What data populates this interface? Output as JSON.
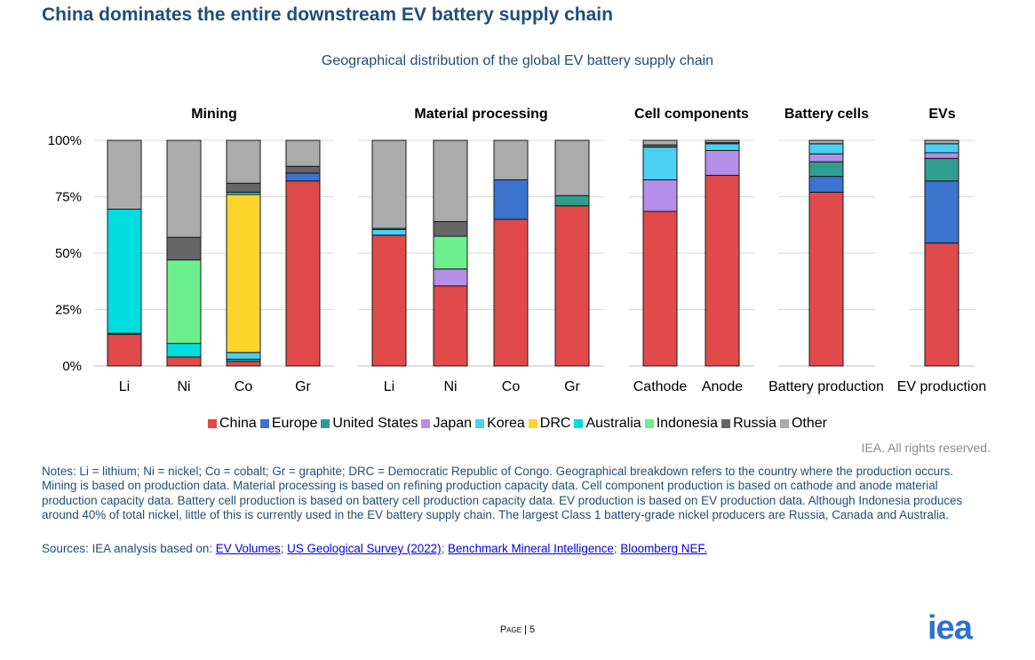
{
  "title": "China dominates the entire downstream EV battery supply chain",
  "subtitle": "Geographical distribution of the global EV battery supply chain",
  "rights": "IEA. All rights reserved.",
  "notes": "Notes: Li = lithium; Ni = nickel; Co = cobalt; Gr = graphite; DRC = Democratic Republic of Congo. Geographical breakdown refers to the country where the production occurs. Mining is based on production data. Material processing is based on refining production capacity data. Cell component production is based on cathode and anode material production capacity data. Battery cell production is based on battery cell production capacity data. EV production is based on EV production data. Although Indonesia produces around 40% of total nickel, little of this is currently used in the EV battery supply chain. The largest Class 1 battery-grade nickel producers are Russia, Canada and Australia.",
  "sources": {
    "prefix": "Sources: IEA analysis based on: ",
    "links": [
      "EV Volumes",
      "US Geological Survey (2022)",
      "Benchmark Mineral Intelligence",
      "Bloomberg NEF."
    ],
    "separators": [
      "; ",
      "; ",
      "; "
    ]
  },
  "page": {
    "label": "Page",
    "number": "5"
  },
  "logo": "iea",
  "chart_data": {
    "type": "bar",
    "stacked": true,
    "ylim": [
      0,
      100
    ],
    "yticks": [
      "0%",
      "25%",
      "50%",
      "75%",
      "100%"
    ],
    "legend_position": "bottom",
    "grid": true,
    "series": [
      {
        "name": "China",
        "color": "#e04a4a"
      },
      {
        "name": "Europe",
        "color": "#3b73cf"
      },
      {
        "name": "United States",
        "color": "#2e9e8f"
      },
      {
        "name": "Japan",
        "color": "#b48ee8"
      },
      {
        "name": "Korea",
        "color": "#4ad0f2"
      },
      {
        "name": "DRC",
        "color": "#fdd42b"
      },
      {
        "name": "Australia",
        "color": "#00dde0"
      },
      {
        "name": "Indonesia",
        "color": "#6bef8d"
      },
      {
        "name": "Russia",
        "color": "#666666"
      },
      {
        "name": "Other",
        "color": "#ababab"
      }
    ],
    "groups": [
      {
        "label": "Mining",
        "bars": [
          {
            "label": "Li",
            "values": {
              "China": 14,
              "Europe": 0.5,
              "Australia": 55,
              "Other": 30.5
            }
          },
          {
            "label": "Ni",
            "values": {
              "China": 4,
              "Australia": 6,
              "Indonesia": 37,
              "Russia": 10,
              "Other": 43
            }
          },
          {
            "label": "Co",
            "values": {
              "China": 2,
              "United States": 1,
              "Korea": 3,
              "DRC": 70,
              "Australia": 1,
              "Russia": 4,
              "Other": 19
            }
          },
          {
            "label": "Gr",
            "values": {
              "China": 82,
              "Europe": 3.5,
              "Russia": 3,
              "Other": 11.5
            }
          }
        ]
      },
      {
        "label": "Material processing",
        "bars": [
          {
            "label": "Li",
            "values": {
              "China": 58,
              "Korea": 2.5,
              "Australia": 0.5,
              "Other": 39
            }
          },
          {
            "label": "Ni",
            "values": {
              "China": 35.5,
              "Japan": 7.5,
              "Indonesia": 14.5,
              "Russia": 6.5,
              "Other": 36
            }
          },
          {
            "label": "Co",
            "values": {
              "China": 65,
              "Europe": 17.5,
              "Other": 17.5
            }
          },
          {
            "label": "Gr",
            "values": {
              "China": 71,
              "United States": 4.5,
              "Other": 24.5
            }
          }
        ]
      },
      {
        "label": "Cell components",
        "bars": [
          {
            "label": "Cathode",
            "values": {
              "China": 68.5,
              "Russia": 1,
              "Japan": 14,
              "Korea": 14.5,
              "Other": 2
            }
          },
          {
            "label": "Anode",
            "values": {
              "China": 84.5,
              "Russia": 0.5,
              "Japan": 11,
              "Korea": 3,
              "Other": 1
            }
          }
        ]
      },
      {
        "label": "Battery cells",
        "bars": [
          {
            "label": "Battery production",
            "values": {
              "China": 77,
              "Europe": 7,
              "United States": 6.5,
              "Korea": 4.5,
              "Japan": 3.5,
              "Other": 1.5
            }
          }
        ]
      },
      {
        "label": "EVs",
        "bars": [
          {
            "label": "EV production",
            "values": {
              "China": 54.5,
              "Europe": 27.5,
              "United States": 10,
              "Korea": 4,
              "Japan": 2.5,
              "Other": 1.5
            }
          }
        ]
      }
    ]
  }
}
